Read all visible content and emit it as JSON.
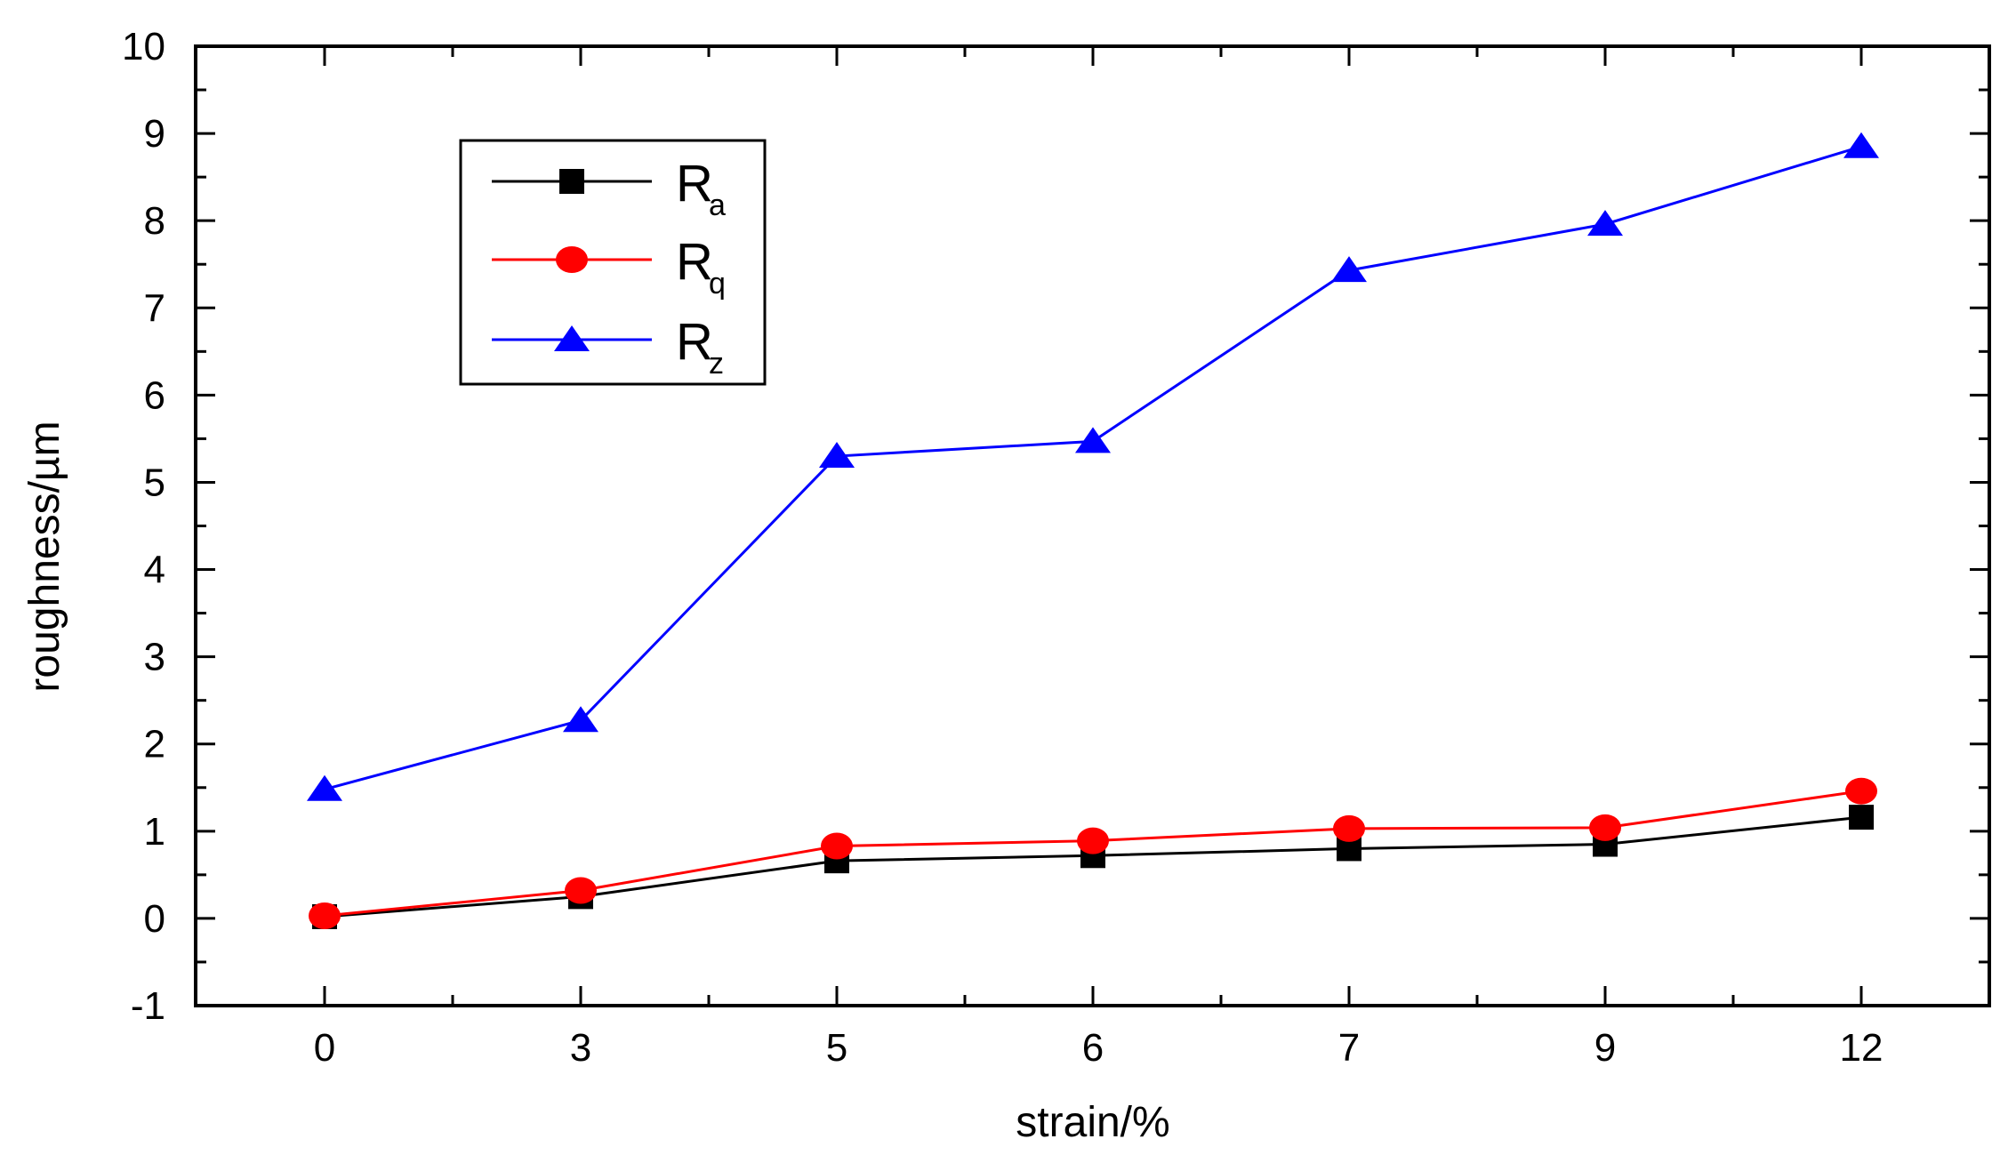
{
  "chart_data": {
    "type": "line",
    "title": "",
    "xlabel": "strain/%",
    "ylabel": "roughness/µm",
    "categories": [
      "0",
      "3",
      "5",
      "6",
      "7",
      "9",
      "12"
    ],
    "ylim": [
      -1,
      10
    ],
    "yticks": [
      "-1",
      "0",
      "1",
      "2",
      "3",
      "4",
      "5",
      "6",
      "7",
      "8",
      "9",
      "10"
    ],
    "grid": false,
    "legend_position": "top-left",
    "series": [
      {
        "name": "Ra",
        "label_main": "R",
        "label_sub": "a",
        "color": "#000000",
        "marker": "square",
        "values": [
          0.02,
          0.25,
          0.66,
          0.72,
          0.8,
          0.85,
          1.16
        ]
      },
      {
        "name": "Rq",
        "label_main": "R",
        "label_sub": "q",
        "color": "#ff0000",
        "marker": "circle",
        "values": [
          0.03,
          0.32,
          0.83,
          0.89,
          1.03,
          1.04,
          1.46
        ]
      },
      {
        "name": "Rz",
        "label_main": "R",
        "label_sub": "z",
        "color": "#0000ff",
        "marker": "triangle",
        "values": [
          1.48,
          2.27,
          5.3,
          5.47,
          7.43,
          7.96,
          8.85
        ]
      }
    ]
  }
}
